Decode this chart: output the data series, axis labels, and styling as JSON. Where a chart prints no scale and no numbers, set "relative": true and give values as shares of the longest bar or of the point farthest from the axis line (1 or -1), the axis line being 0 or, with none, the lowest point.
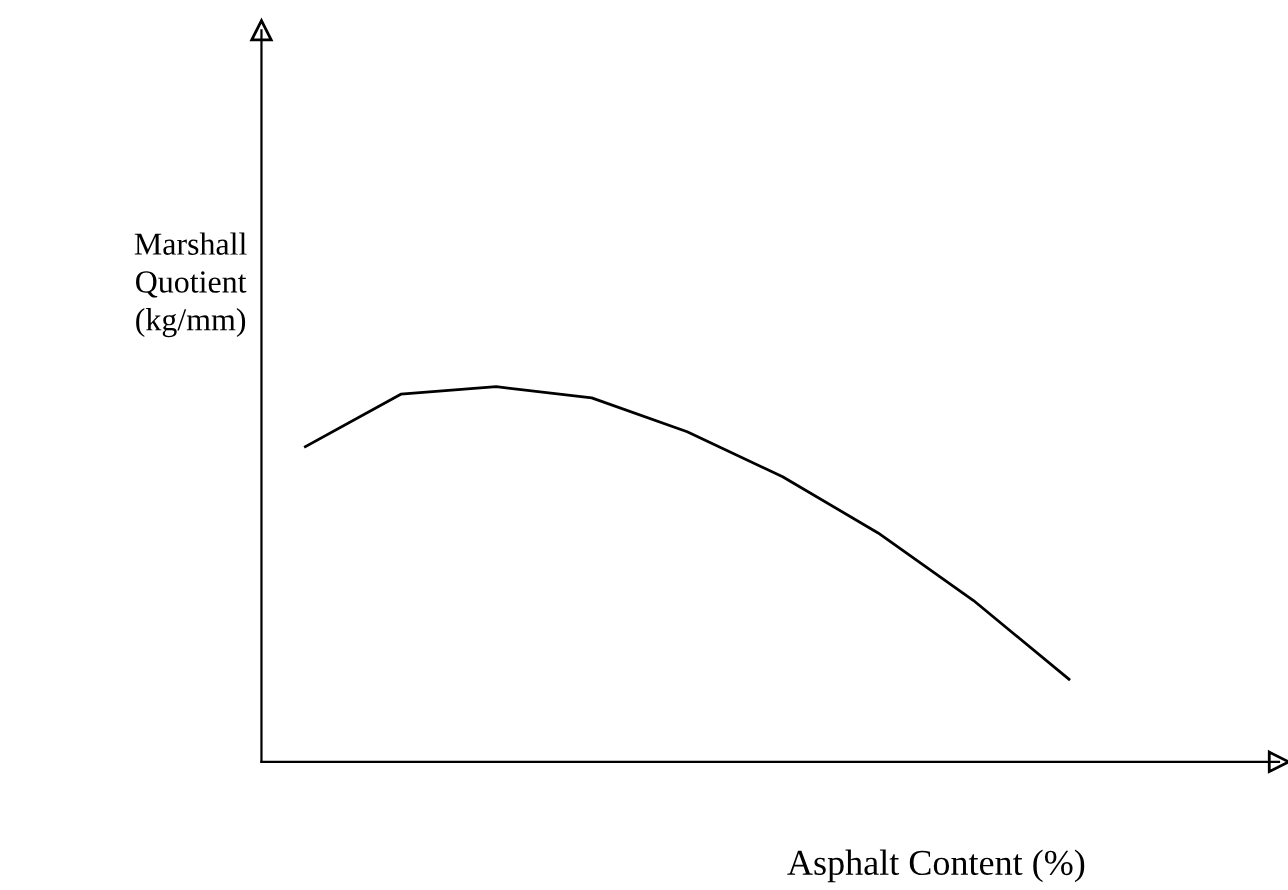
{
  "chart_data": {
    "type": "line",
    "relative": true,
    "xlabel": "Asphalt Content (%)",
    "ylabel": "Marshall\nQuotient\n(kg/mm)",
    "categories": [
      null,
      null,
      null,
      null,
      null,
      null,
      null,
      null,
      null
    ],
    "series": [
      {
        "color": "#000000",
        "values": [
          0.84,
          0.98,
          1,
          0.97,
          0.88,
          0.76,
          0.61,
          0.43,
          0.22
        ]
      }
    ],
    "grid": false,
    "marker": "none",
    "line_style": "solid"
  }
}
